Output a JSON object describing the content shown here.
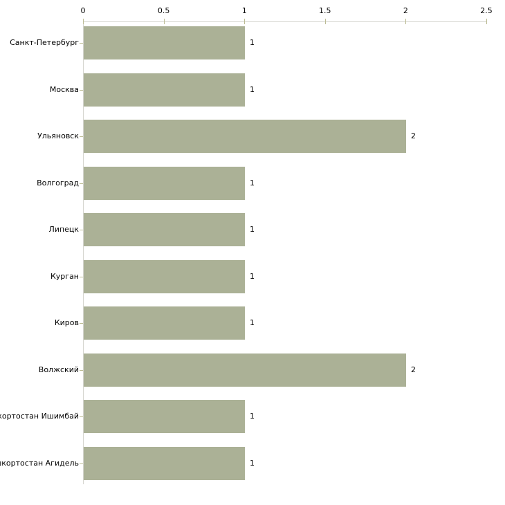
{
  "chart_data": {
    "type": "bar",
    "orientation": "horizontal",
    "title": "",
    "xlabel": "",
    "ylabel": "",
    "categories": [
      "Санкт-Петербург",
      "Москва",
      "Ульяновск",
      "Волгоград",
      "Липецк",
      "Курган",
      "Киров",
      "Волжский",
      "Башкортостан Ишимбай",
      "Башкортостан Агидель"
    ],
    "values": [
      1,
      1,
      2,
      1,
      1,
      1,
      1,
      2,
      1,
      1
    ],
    "x_ticks": [
      0,
      0.5,
      1,
      1.5,
      2,
      2.5
    ],
    "x_tick_labels": [
      "0",
      "0.5",
      "1",
      "1.5",
      "2",
      "2.5"
    ],
    "xlim": [
      0,
      2.5
    ],
    "grid": false,
    "legend": false,
    "axis_position": "top",
    "colors": {
      "bar": "#abb196",
      "axis_line": "#d5d5cf",
      "tick": "#bcbc94",
      "text": "#000000",
      "background": "#ffffff"
    }
  }
}
